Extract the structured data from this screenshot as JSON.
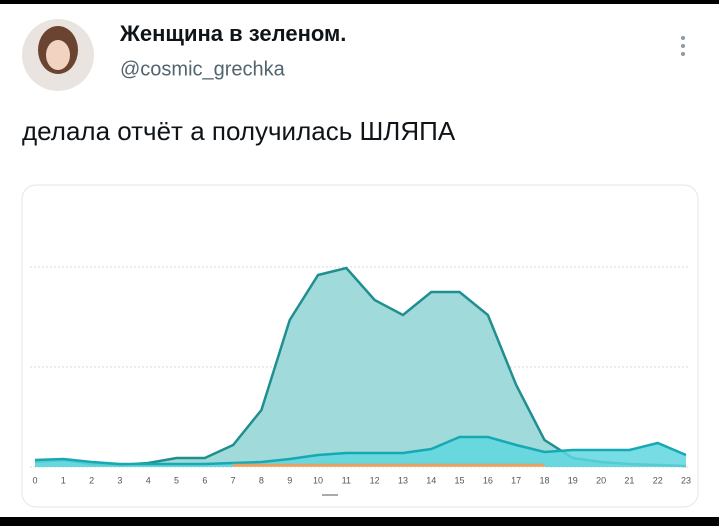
{
  "header": {
    "name": "Женщина в зеленом.",
    "handle": "@cosmic_grechka"
  },
  "tweet": {
    "text": "делала отчёт а получилась ШЛЯПА"
  },
  "chart_data": {
    "type": "area",
    "categories": [
      "0",
      "1",
      "2",
      "3",
      "4",
      "5",
      "6",
      "7",
      "8",
      "9",
      "10",
      "11",
      "12",
      "13",
      "14",
      "15",
      "16",
      "17",
      "18",
      "19",
      "20",
      "21",
      "22",
      "23"
    ],
    "ylim": [
      0,
      300
    ],
    "yticks": [
      0,
      100,
      200
    ],
    "grid": true,
    "series": [
      {
        "color": "#1f8f90",
        "fill": "#8fd3d3",
        "values": [
          5,
          7,
          3,
          2,
          4,
          9,
          9,
          22,
          57,
          147,
          192,
          199,
          167,
          152,
          175,
          175,
          152,
          82,
          27,
          9,
          5,
          3,
          2,
          1
        ]
      },
      {
        "color": "#17a9b3",
        "fill": "#5fd6de",
        "values": [
          7,
          8,
          5,
          3,
          3,
          3,
          3,
          4,
          5,
          8,
          12,
          14,
          14,
          14,
          18,
          30,
          30,
          22,
          15,
          17,
          17,
          17,
          24,
          12
        ]
      },
      {
        "color": "#e8a05a",
        "fill": "#f2c08c",
        "values": [
          null,
          null,
          null,
          null,
          null,
          null,
          null,
          2,
          2,
          2,
          2,
          2,
          2,
          2,
          2,
          2,
          2,
          2,
          2,
          null,
          null,
          null,
          null,
          null
        ]
      }
    ]
  }
}
